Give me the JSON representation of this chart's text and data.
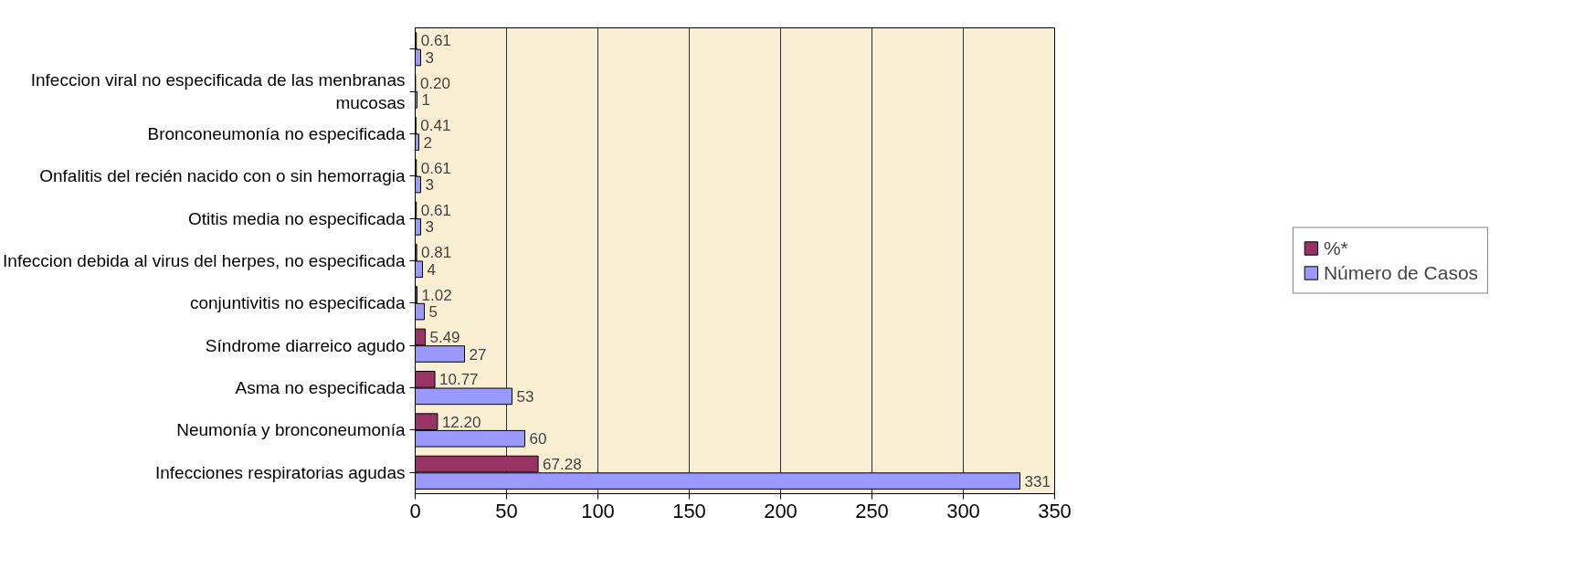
{
  "chart_data": {
    "type": "bar",
    "orientation": "horizontal",
    "categories": [
      null,
      "Infeccion viral no especificada de las menbranas mucosas",
      "Bronconeumonía no especificada",
      "Onfalitis del recién nacido con o sin hemorragia",
      "Otitis media no especificada",
      "Infeccion debida al virus del herpes, no especificada",
      "conjuntivitis no especificada",
      "Síndrome diarreico agudo",
      "Asma no especificada",
      "Neumonía y bronconeumonía",
      "Infecciones respiratorias agudas"
    ],
    "series": [
      {
        "name": "%*",
        "color": "#993366",
        "values": [
          0.61,
          0.2,
          0.41,
          0.61,
          0.61,
          0.81,
          1.02,
          5.49,
          10.77,
          12.2,
          67.28
        ],
        "value_labels": [
          "0.61",
          "0.20",
          "0.41",
          "0.61",
          "0.61",
          "0.81",
          "1.02",
          "5.49",
          "10.77",
          "12.20",
          "67.28"
        ]
      },
      {
        "name": "Número de Casos",
        "color": "#9999ff",
        "values": [
          3,
          1,
          2,
          3,
          3,
          4,
          5,
          27,
          53,
          60,
          331
        ],
        "value_labels": [
          "3",
          "1",
          "2",
          "3",
          "3",
          "4",
          "5",
          "27",
          "53",
          "60",
          "331"
        ]
      }
    ],
    "xlim": [
      0,
      350
    ],
    "xticks": [
      0,
      50,
      100,
      150,
      200,
      250,
      300,
      350
    ],
    "grid": "x",
    "legend": "right"
  }
}
